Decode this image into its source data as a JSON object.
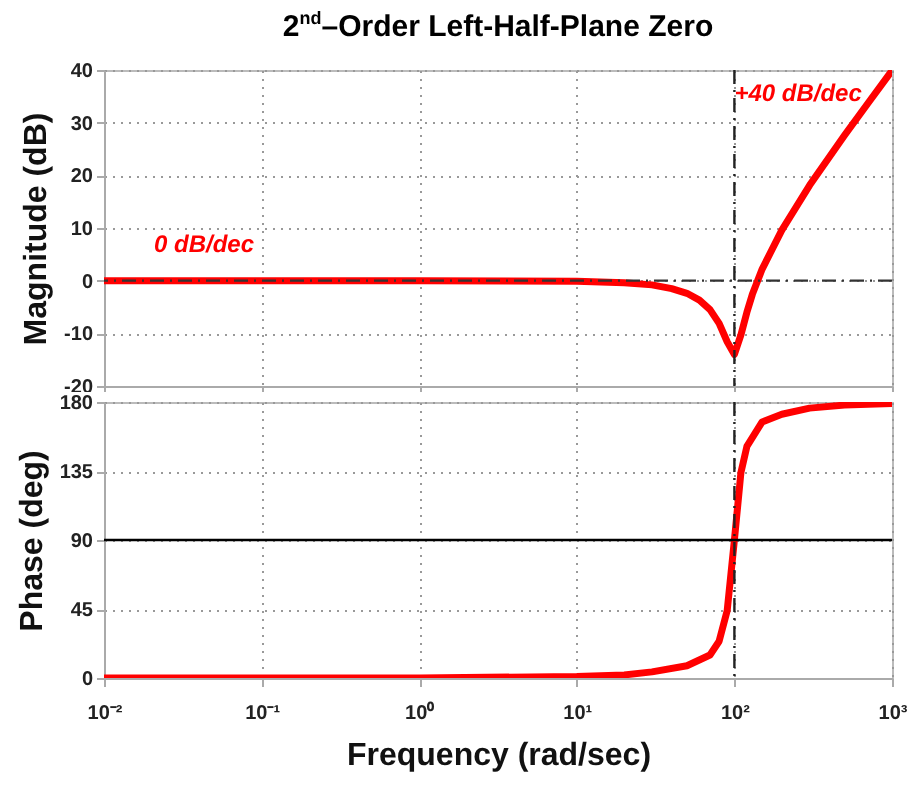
{
  "chart_data": [
    {
      "type": "line",
      "title": "2$^{nd}$–Order Left-Half-Plane Zero",
      "ylabel": "Magnitude (dB)",
      "x": [
        0.01,
        0.1,
        1,
        10,
        20,
        30,
        40,
        50,
        60,
        70,
        80,
        90,
        100,
        110,
        120,
        130,
        150,
        200,
        300,
        500,
        700,
        1000
      ],
      "series": [
        {
          "color": "#ff0000",
          "values": [
            0,
            0,
            0,
            -0.1,
            -0.4,
            -0.8,
            -1.5,
            -2.4,
            -3.7,
            -5.5,
            -8.1,
            -11.6,
            -14,
            -10.3,
            -6,
            -2.6,
            2.2,
            9.6,
            18.1,
            27.6,
            33.6,
            39.9
          ]
        }
      ],
      "xlim": [
        0.01,
        1000
      ],
      "log": "x",
      "xticks": [
        0.01,
        0.1,
        1,
        10,
        100,
        1000
      ],
      "ylim": [
        -20,
        40
      ],
      "yticks": [
        -20,
        -10,
        0,
        10,
        20,
        30,
        40
      ],
      "tick_labels": "y",
      "grid": true,
      "line_style": "solid",
      "ref_lines": [
        {
          "axis": "y",
          "value": 0,
          "line_style": "dashed",
          "color": "#333333"
        },
        {
          "axis": "x",
          "value": 100,
          "line_style": "dashed",
          "color": "#222222"
        }
      ],
      "annotations": [
        "0 dB/dec",
        {
          "text": "+40 dB/dec",
          "x": 100,
          "y": 33
        }
      ]
    },
    {
      "type": "line",
      "ylabel": "Phase (deg)",
      "xlabel": "Frequency  (rad/sec)",
      "x": [
        0.01,
        0.1,
        1,
        10,
        20,
        30,
        50,
        70,
        80,
        90,
        100,
        110,
        120,
        150,
        200,
        300,
        500,
        1000
      ],
      "series": [
        {
          "color": "#ff0000",
          "values": [
            0,
            0,
            0,
            1,
            2,
            4,
            8,
            15,
            24,
            44,
            90,
            134,
            151,
            167,
            172,
            176,
            178,
            179
          ]
        }
      ],
      "xlim": [
        0.01,
        1000
      ],
      "log": "x",
      "xticks": [
        {
          "value": 0.01,
          "label": "10⁻²"
        },
        {
          "value": 0.1,
          "label": "10⁻¹"
        },
        {
          "value": 1,
          "label": "10⁰"
        },
        {
          "value": 10,
          "label": "10¹"
        },
        {
          "value": 100,
          "label": "10²"
        },
        {
          "value": 1000,
          "label": "10³"
        }
      ],
      "ylim": [
        0,
        180
      ],
      "yticks": [
        0,
        45,
        90,
        135,
        180
      ],
      "grid": true,
      "line_style": "solid",
      "ref_lines": [
        {
          "axis": "y",
          "value": 90,
          "line_style": "solid",
          "color": "#000000"
        },
        {
          "axis": "x",
          "value": 100,
          "line_style": "dashed",
          "color": "#222222"
        }
      ]
    }
  ]
}
